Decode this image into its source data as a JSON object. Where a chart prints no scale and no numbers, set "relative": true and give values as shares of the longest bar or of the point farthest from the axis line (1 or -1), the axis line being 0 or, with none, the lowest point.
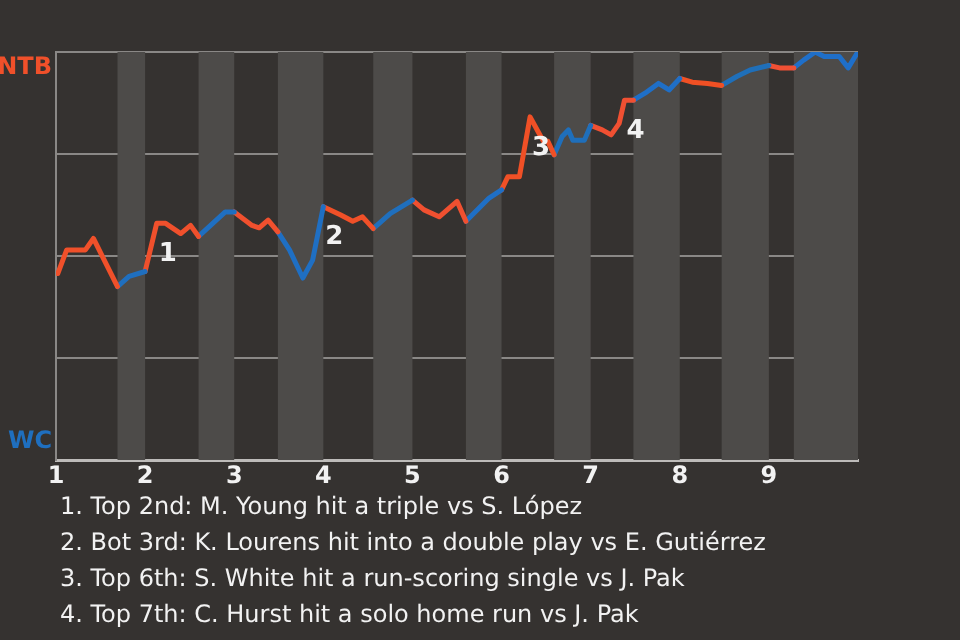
{
  "chart_data": {
    "type": "line",
    "relative": true,
    "series": [
      {
        "color": "#f0502a",
        "x": [
          1.02,
          1.12,
          1.33,
          1.42,
          1.69
        ],
        "values": [
          0.457,
          0.515,
          0.515,
          0.543,
          0.425
        ]
      },
      {
        "color": "#1f6fbf",
        "x": [
          1.69,
          1.82,
          2.0
        ],
        "values": [
          0.425,
          0.45,
          0.462
        ]
      },
      {
        "color": "#f0502c",
        "x": [
          2.0,
          2.13,
          2.23,
          2.4,
          2.51,
          2.6
        ],
        "values": [
          0.462,
          0.58,
          0.58,
          0.555,
          0.575,
          0.548
        ]
      },
      {
        "color": "#1f6fc1",
        "x": [
          2.6,
          2.9,
          3.0
        ],
        "values": [
          0.548,
          0.608,
          0.608
        ]
      },
      {
        "color": "#f0502e",
        "x": [
          3.0,
          3.2,
          3.28,
          3.38,
          3.49
        ],
        "values": [
          0.608,
          0.575,
          0.569,
          0.588,
          0.559
        ]
      },
      {
        "color": "#1f6fc3",
        "x": [
          3.49,
          3.62,
          3.77,
          3.88,
          4.0
        ],
        "values": [
          0.559,
          0.515,
          0.446,
          0.49,
          0.621
        ]
      },
      {
        "color": "#f05028",
        "x": [
          4.0,
          4.19,
          4.33,
          4.44,
          4.56
        ],
        "values": [
          0.621,
          0.601,
          0.585,
          0.596,
          0.567
        ]
      },
      {
        "color": "#1f6fbd",
        "x": [
          4.56,
          4.75,
          5.0
        ],
        "values": [
          0.567,
          0.604,
          0.637
        ]
      },
      {
        "color": "#f05030",
        "x": [
          5.0,
          5.13,
          5.3,
          5.5,
          5.6
        ],
        "values": [
          0.637,
          0.613,
          0.596,
          0.634,
          0.585
        ]
      },
      {
        "color": "#1f6fc5",
        "x": [
          5.6,
          5.86,
          6.0
        ],
        "values": [
          0.585,
          0.642,
          0.662
        ]
      },
      {
        "color": "#f05026",
        "x": [
          6.0,
          6.07,
          6.2,
          6.32,
          6.42,
          6.47,
          6.52,
          6.59
        ],
        "values": [
          0.662,
          0.694,
          0.694,
          0.841,
          0.801,
          0.781,
          0.781,
          0.748
        ]
      },
      {
        "color": "#1f6fbb",
        "x": [
          6.59,
          6.68,
          6.75,
          6.8,
          6.93,
          7.0
        ],
        "values": [
          0.748,
          0.793,
          0.809,
          0.784,
          0.784,
          0.82
        ]
      },
      {
        "color": "#f05032",
        "x": [
          7.0,
          7.13,
          7.23,
          7.32,
          7.38,
          7.48
        ],
        "values": [
          0.82,
          0.809,
          0.797,
          0.825,
          0.882,
          0.882
        ]
      },
      {
        "color": "#1f6fc7",
        "x": [
          7.48,
          7.61,
          7.76,
          7.88,
          8.0
        ],
        "values": [
          0.882,
          0.899,
          0.923,
          0.907,
          0.935
        ]
      },
      {
        "color": "#f05024",
        "x": [
          8.0,
          8.14,
          8.31,
          8.47
        ],
        "values": [
          0.935,
          0.926,
          0.923,
          0.918
        ]
      },
      {
        "color": "#1f6fb9",
        "x": [
          8.47,
          8.64,
          8.79,
          9.0
        ],
        "values": [
          0.918,
          0.94,
          0.956,
          0.967
        ]
      },
      {
        "color": "#f05034",
        "x": [
          9.0,
          9.12,
          9.28
        ],
        "values": [
          0.967,
          0.961,
          0.961
        ]
      },
      {
        "color": "#1f6fc9",
        "x": [
          9.28,
          9.39,
          9.52,
          9.62,
          9.79,
          9.89,
          9.99
        ],
        "values": [
          0.961,
          0.98,
          1,
          0.989,
          0.989,
          0.961,
          0.997
        ]
      }
    ],
    "xlim": [
      1,
      10
    ],
    "xticks": [
      1,
      2,
      3,
      4,
      5,
      6,
      7,
      8,
      9
    ],
    "grid": "y",
    "bands": [
      {
        "axis": "x",
        "from": 1.69,
        "to": 2,
        "color": "#4d4b49"
      },
      {
        "axis": "x",
        "from": 2.6,
        "to": 3,
        "color": "#4d4b49"
      },
      {
        "axis": "x",
        "from": 3.49,
        "to": 4,
        "color": "#4d4b49"
      },
      {
        "axis": "x",
        "from": 4.56,
        "to": 5,
        "color": "#4d4b49"
      },
      {
        "axis": "x",
        "from": 5.6,
        "to": 6,
        "color": "#4d4b49"
      },
      {
        "axis": "x",
        "from": 6.59,
        "to": 7,
        "color": "#4d4b49"
      },
      {
        "axis": "x",
        "from": 7.48,
        "to": 8,
        "color": "#4d4b49"
      },
      {
        "axis": "x",
        "from": 8.47,
        "to": 9,
        "color": "#4d4b49"
      },
      {
        "axis": "x",
        "from": 9.28,
        "to": 10,
        "color": "#4d4b49"
      }
    ],
    "annotations": [
      "NTB",
      "WC",
      {
        "text": "1",
        "x": 2.13,
        "y": 0.58
      },
      {
        "text": "2",
        "x": 4.0,
        "y": 0.621
      },
      {
        "text": "3",
        "x": 6.32,
        "y": 0.841
      },
      {
        "text": "4",
        "x": 7.38,
        "y": 0.882
      },
      "1. Top 2nd: M. Young hit a triple vs S. López",
      "2. Bot 3rd: K. Lourens hit into a double play vs E. Gutiérrez",
      "3. Top 6th: S. White hit a run-scoring single vs J. Pak",
      "4. Top 7th: C. Hurst hit a solo home run vs J. Pak"
    ],
    "legend": false,
    "marker": "none",
    "line_style": "solid"
  }
}
